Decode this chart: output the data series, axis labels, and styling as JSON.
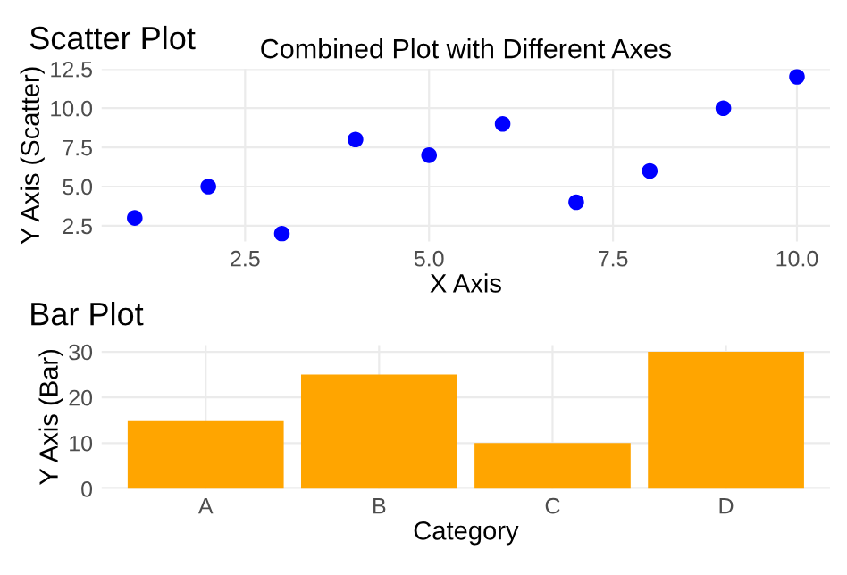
{
  "chart_data": [
    {
      "type": "scatter",
      "title": "Scatter Plot",
      "subtitle": "Combined Plot with Different Axes",
      "xlabel": "X Axis",
      "ylabel": "Y Axis (Scatter)",
      "x": [
        1,
        2,
        3,
        4,
        5,
        6,
        7,
        8,
        9,
        10
      ],
      "series": [
        {
          "color": "#0000ff",
          "values": [
            3,
            5,
            2,
            8,
            7,
            9,
            4,
            6,
            10,
            12
          ]
        }
      ],
      "marker": "circle",
      "xlim": [
        0.55,
        10.45
      ],
      "ylim": [
        1.5,
        12.5
      ],
      "xticks": [
        {
          "value": 2.5,
          "label": "2.5"
        },
        {
          "value": 5,
          "label": "5.0"
        },
        {
          "value": 7.5,
          "label": "7.5"
        },
        {
          "value": 10,
          "label": "10.0"
        }
      ],
      "yticks": [
        {
          "value": 2.5,
          "label": "2.5"
        },
        {
          "value": 5,
          "label": "5.0"
        },
        {
          "value": 7.5,
          "label": "7.5"
        },
        {
          "value": 10,
          "label": "10.0"
        },
        {
          "value": 12.5,
          "label": "12.5"
        }
      ],
      "grid": true
    },
    {
      "type": "bar",
      "title": "Bar Plot",
      "xlabel": "Category",
      "ylabel": "Y Axis (Bar)",
      "categories": [
        "A",
        "B",
        "C",
        "D"
      ],
      "series": [
        {
          "color": "#ffa500",
          "values": [
            15,
            25,
            10,
            30
          ]
        }
      ],
      "ylim": [
        0,
        31.5
      ],
      "yticks": [
        0,
        10,
        20,
        30
      ],
      "grid": true
    }
  ]
}
